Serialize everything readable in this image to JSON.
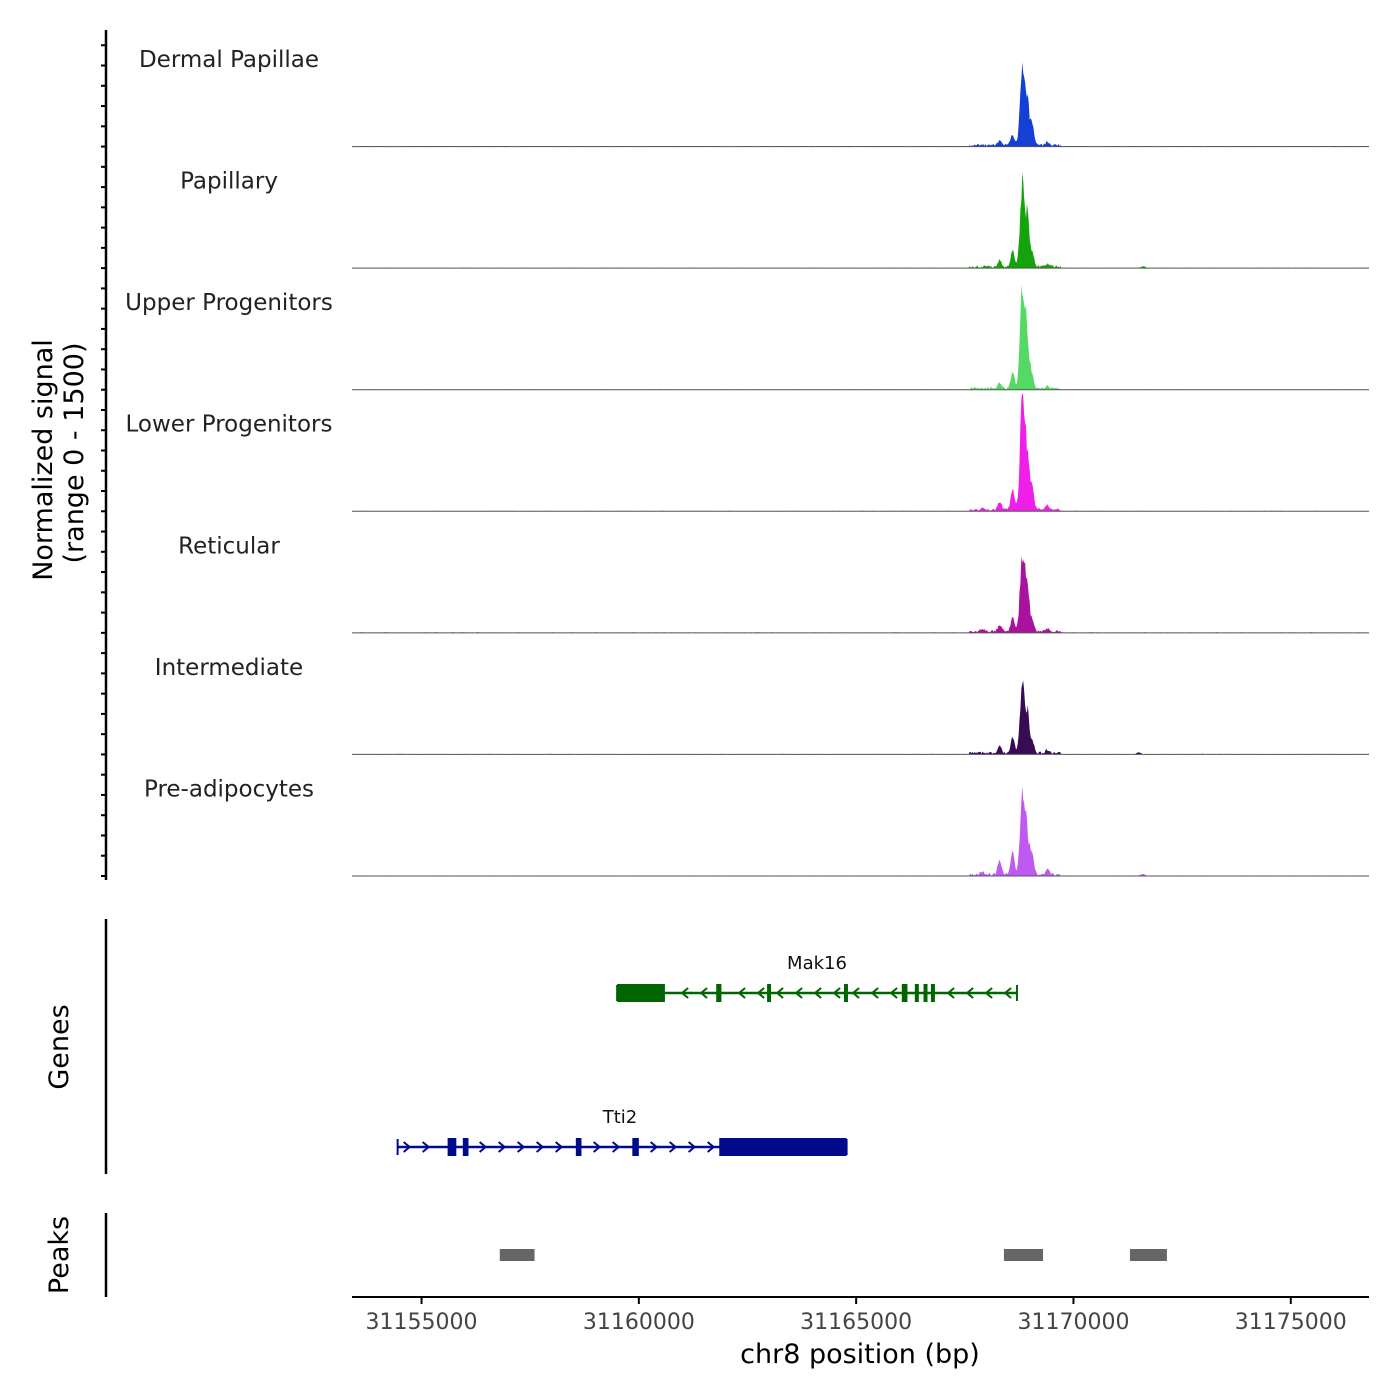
{
  "chart_data": {
    "type": "area",
    "title": "",
    "ylabel_line1": "Normalized signal",
    "ylabel_line2": "(range 0 - 1500)",
    "signal_range": [
      0,
      1500
    ],
    "xlabel": "chr8 position (bp)",
    "xlim": [
      31153400,
      31176800
    ],
    "x_ticks": [
      31155000,
      31160000,
      31165000,
      31170000,
      31175000
    ],
    "x_tick_labels": [
      "31155000",
      "31160000",
      "31165000",
      "31170000",
      "31175000"
    ],
    "tracks": [
      {
        "name": "Dermal Papillae",
        "color": "#1540D6",
        "main_peak": 1210,
        "side_peaks": [
          [
            31169050,
            280
          ],
          [
            31168600,
            140
          ],
          [
            31168300,
            60
          ],
          [
            31169400,
            50
          ]
        ]
      },
      {
        "name": "Papillary",
        "color": "#14A30A",
        "main_peak": 1240,
        "side_peaks": [
          [
            31169050,
            190
          ],
          [
            31168600,
            230
          ],
          [
            31168300,
            90
          ],
          [
            31169400,
            40
          ],
          [
            31171600,
            25
          ]
        ]
      },
      {
        "name": "Upper Progenitors",
        "color": "#55D966",
        "main_peak": 1480,
        "side_peaks": [
          [
            31169050,
            160
          ],
          [
            31168600,
            220
          ],
          [
            31168300,
            70
          ],
          [
            31169400,
            40
          ]
        ]
      },
      {
        "name": "Lower Progenitors",
        "color": "#EE1FE8",
        "main_peak": 1640,
        "side_peaks": [
          [
            31169050,
            320
          ],
          [
            31168600,
            280
          ],
          [
            31168300,
            110
          ],
          [
            31169400,
            60
          ],
          [
            31167900,
            40
          ]
        ]
      },
      {
        "name": "Reticular",
        "color": "#A8129E",
        "main_peak": 1160,
        "side_peaks": [
          [
            31169050,
            140
          ],
          [
            31168600,
            200
          ],
          [
            31168300,
            90
          ],
          [
            31169400,
            40
          ],
          [
            31167900,
            30
          ]
        ]
      },
      {
        "name": "Intermediate",
        "color": "#3A0B55",
        "main_peak": 1030,
        "side_peaks": [
          [
            31169050,
            170
          ],
          [
            31168600,
            210
          ],
          [
            31168300,
            110
          ],
          [
            31169400,
            40
          ],
          [
            31171500,
            25
          ]
        ]
      },
      {
        "name": "Pre-adipocytes",
        "color": "#BF5AF0",
        "main_peak": 1180,
        "side_peaks": [
          [
            31169050,
            270
          ],
          [
            31168600,
            320
          ],
          [
            31168300,
            200
          ],
          [
            31169400,
            80
          ],
          [
            31167900,
            40
          ],
          [
            31171600,
            25
          ]
        ]
      }
    ],
    "main_peak_position": 31168820,
    "genes_label": "Genes",
    "genes": [
      {
        "name": "Mak16",
        "strand": "-",
        "color": "#006400",
        "start": 31159500,
        "end": 31168700,
        "exons": [
          [
            31159500,
            31160600
          ],
          [
            31161780,
            31161900
          ],
          [
            31162950,
            31163020
          ],
          [
            31164720,
            31164780
          ],
          [
            31166050,
            31166180
          ],
          [
            31166350,
            31166420
          ],
          [
            31166550,
            31166620
          ],
          [
            31166720,
            31166780
          ]
        ]
      },
      {
        "name": "Tti2",
        "strand": "+",
        "color": "#000B8C",
        "start": 31154450,
        "end": 31164780,
        "exons": [
          [
            31155600,
            31155800
          ],
          [
            31155950,
            31156080
          ],
          [
            31158550,
            31158680
          ],
          [
            31159850,
            31160000
          ],
          [
            31161850,
            31164780
          ]
        ]
      }
    ],
    "peaks_label": "Peaks",
    "peaks_color": "#666666",
    "peaks": [
      [
        31156800,
        31157600
      ],
      [
        31168400,
        31169300
      ],
      [
        31171300,
        31172150
      ]
    ]
  }
}
